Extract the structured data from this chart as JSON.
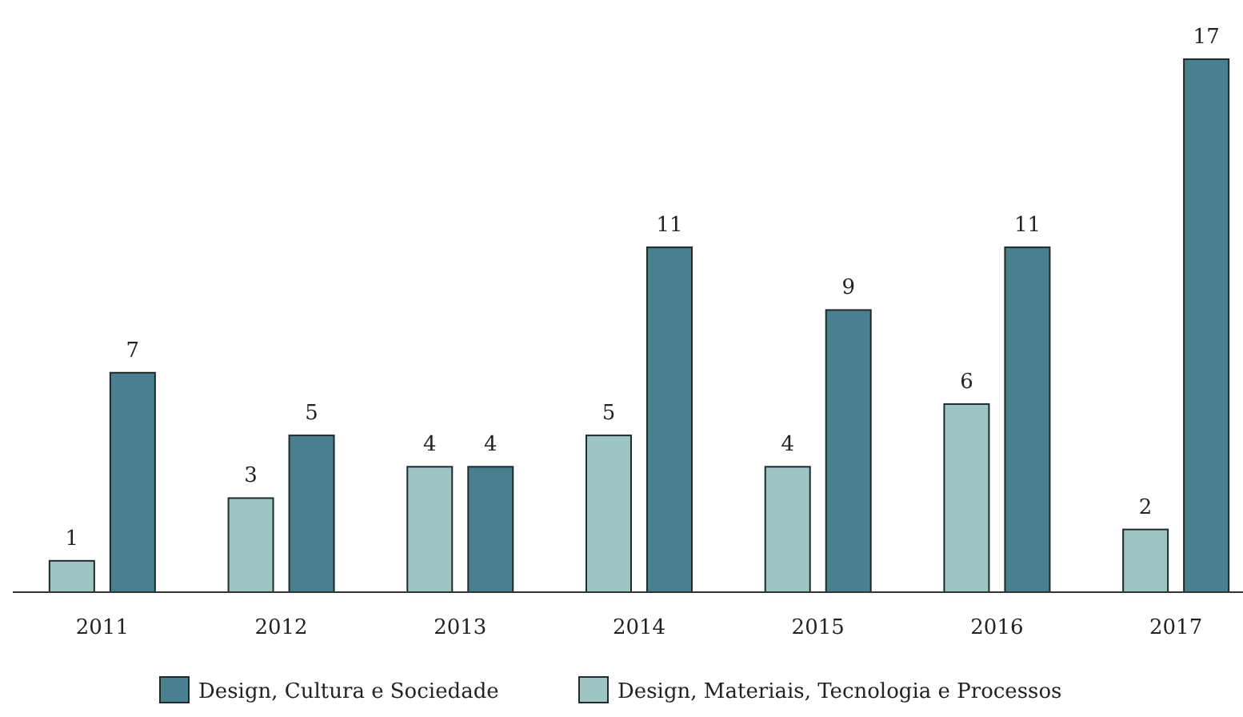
{
  "chart_data": {
    "type": "bar",
    "categories": [
      "2011",
      "2012",
      "2013",
      "2014",
      "2015",
      "2016",
      "2017"
    ],
    "series": [
      {
        "name": "Design, Materiais, Tecnologia e Processos",
        "color": "#9fc4c4",
        "values": [
          1,
          3,
          4,
          5,
          4,
          6,
          2
        ]
      },
      {
        "name": "Design, Cultura e Sociedade",
        "color": "#4a7f8f",
        "values": [
          7,
          5,
          4,
          11,
          9,
          11,
          17
        ]
      }
    ],
    "data_labels": true,
    "legend": "bottom"
  }
}
